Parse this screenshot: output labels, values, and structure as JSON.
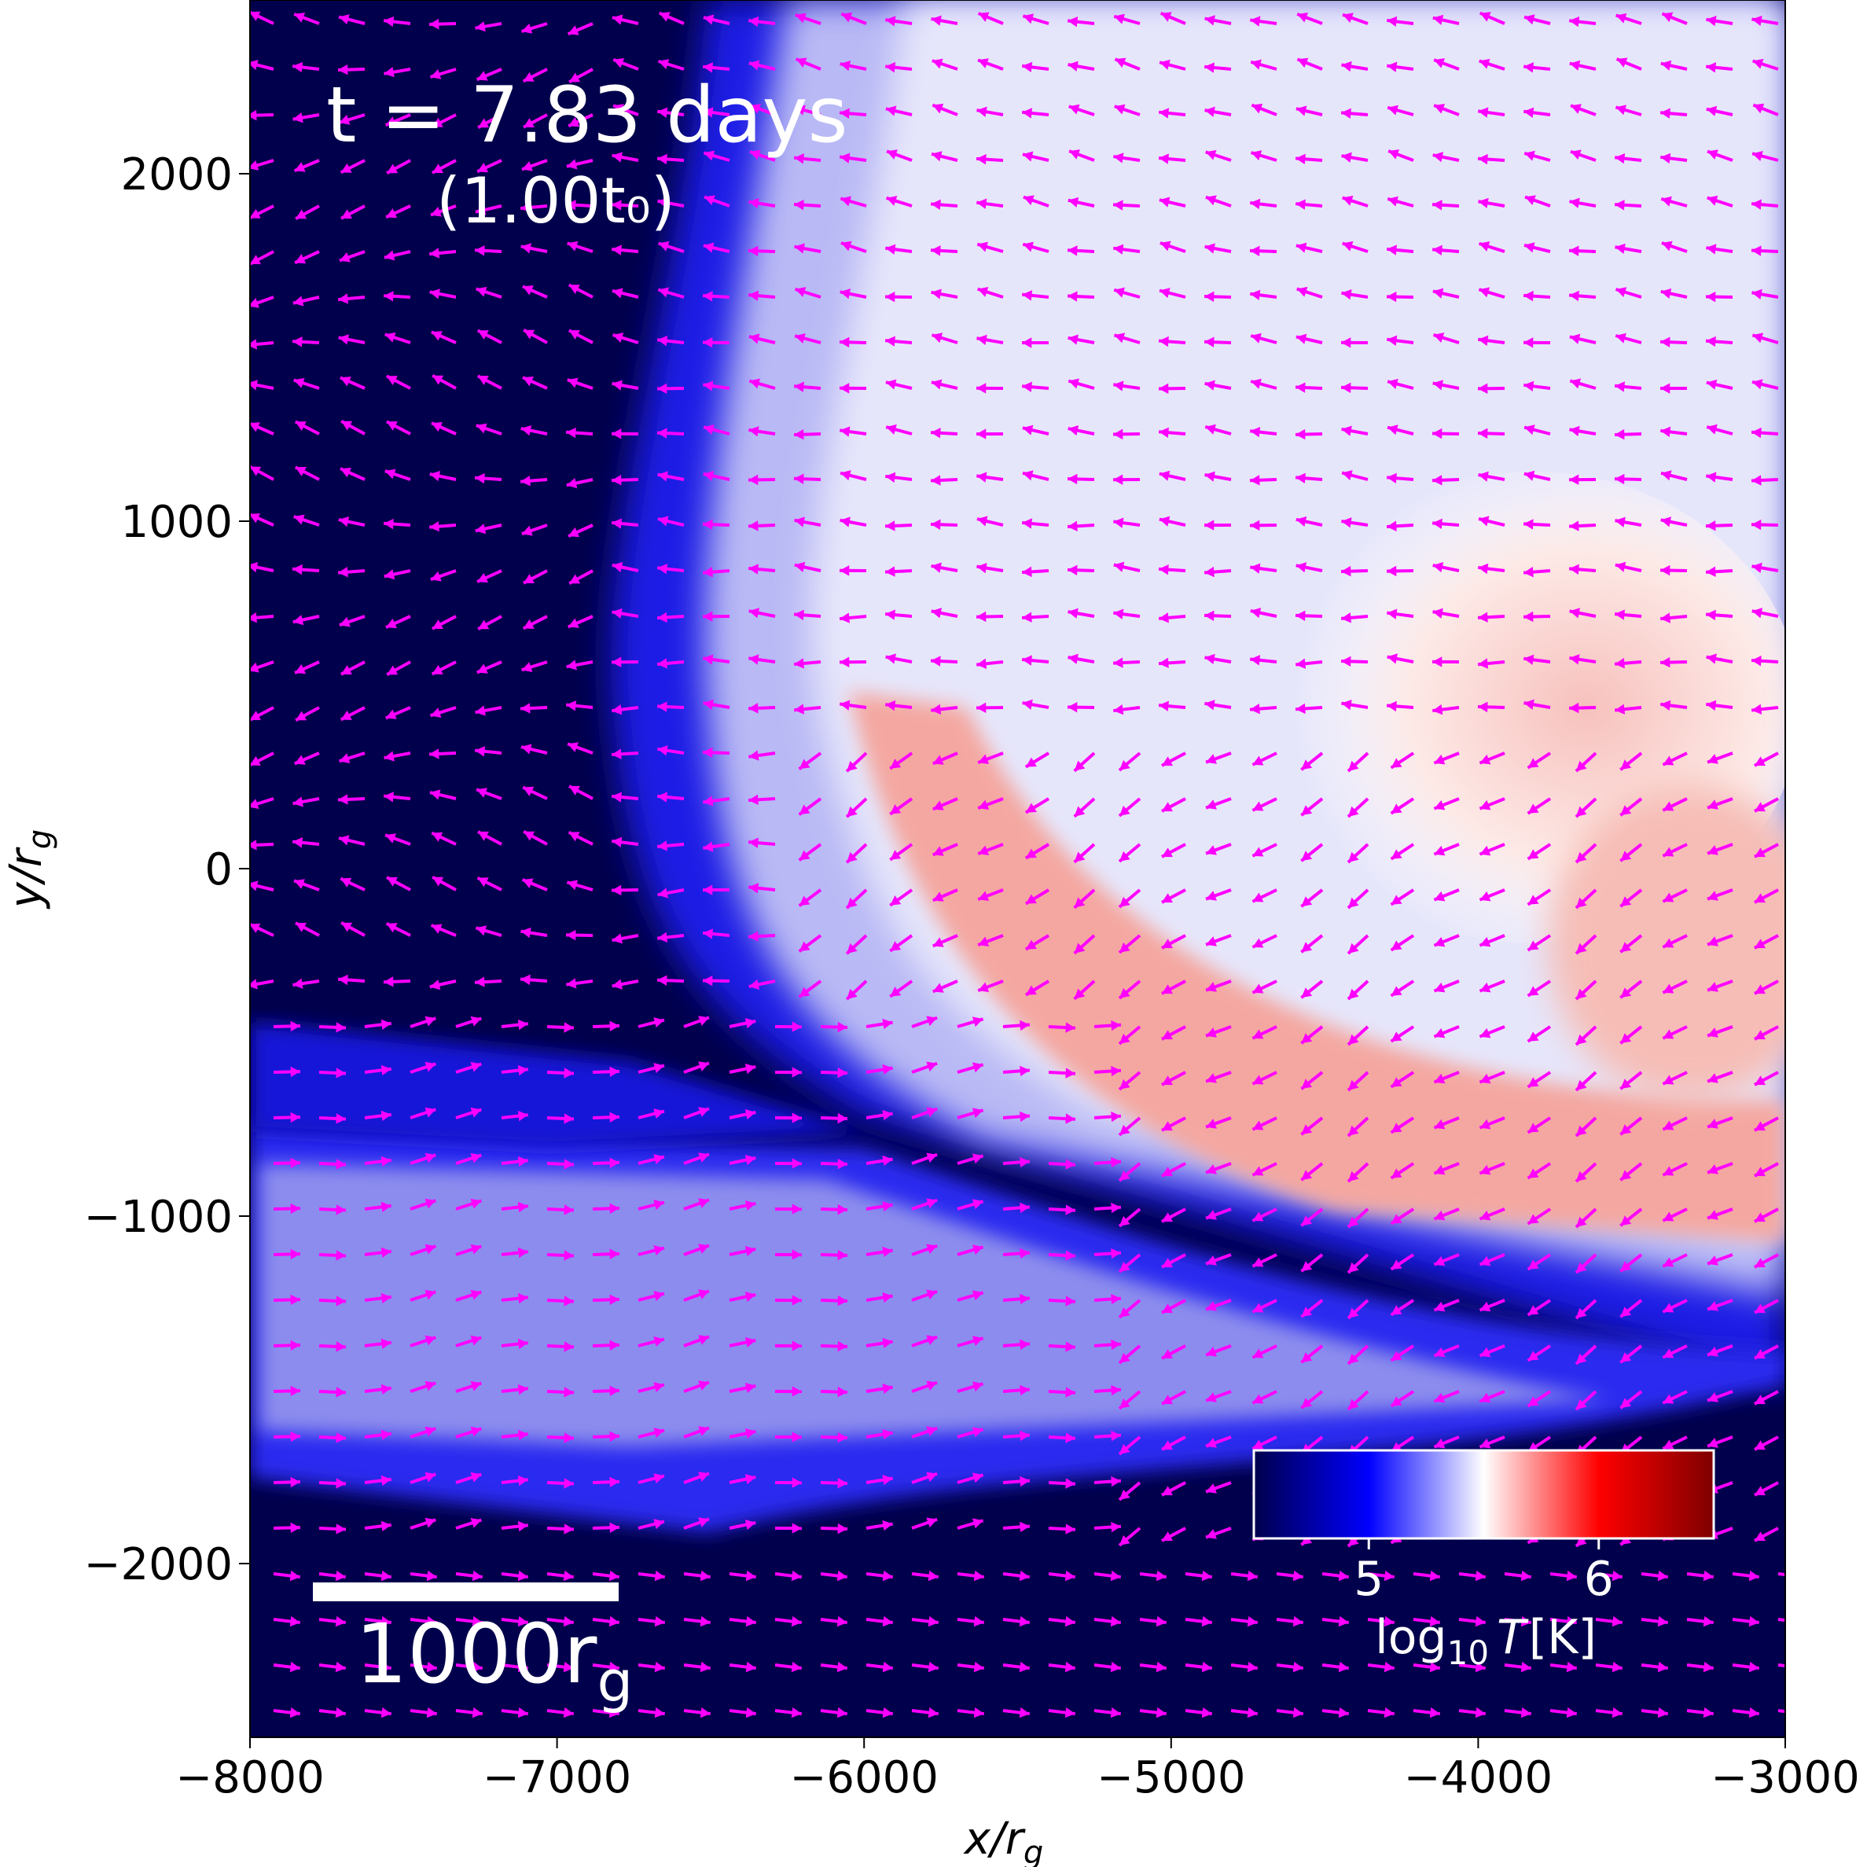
{
  "chart_data": {
    "type": "heatmap",
    "title": "",
    "annotation_time": "t = 7.83 days",
    "annotation_time_ratio": "(1.00t₀)",
    "scale_bar_label": "1000r",
    "scale_bar_label_sub": "g",
    "scale_bar_length": 1000,
    "xlabel": "x/r",
    "xlabel_sub": "g",
    "ylabel": "y/r",
    "ylabel_sub": "g",
    "xlim": [
      -8000,
      -3000
    ],
    "ylim": [
      -2500,
      2500
    ],
    "xticks": [
      -8000,
      -7000,
      -6000,
      -5000,
      -4000,
      -3000
    ],
    "xtick_labels": [
      "−8000",
      "−7000",
      "−6000",
      "−5000",
      "−4000",
      "−3000"
    ],
    "yticks": [
      -2000,
      -1000,
      0,
      1000,
      2000
    ],
    "ytick_labels": [
      "−2000",
      "−1000",
      "0",
      "1000",
      "2000"
    ],
    "colorbar": {
      "label_prefix": "log",
      "label_sub": "10",
      "label_suffix": "T [K]",
      "range": [
        4.5,
        6.5
      ],
      "ticks": [
        5,
        6
      ],
      "tick_labels": [
        "5",
        "6"
      ],
      "cmap": "seismic",
      "placement": "lower-right"
    },
    "colors": {
      "background": "#00004c",
      "arrow": "#ff00ff",
      "annotation_text": "#ffffff"
    },
    "vector_field": "velocity arrows (magenta)",
    "grid": false
  }
}
